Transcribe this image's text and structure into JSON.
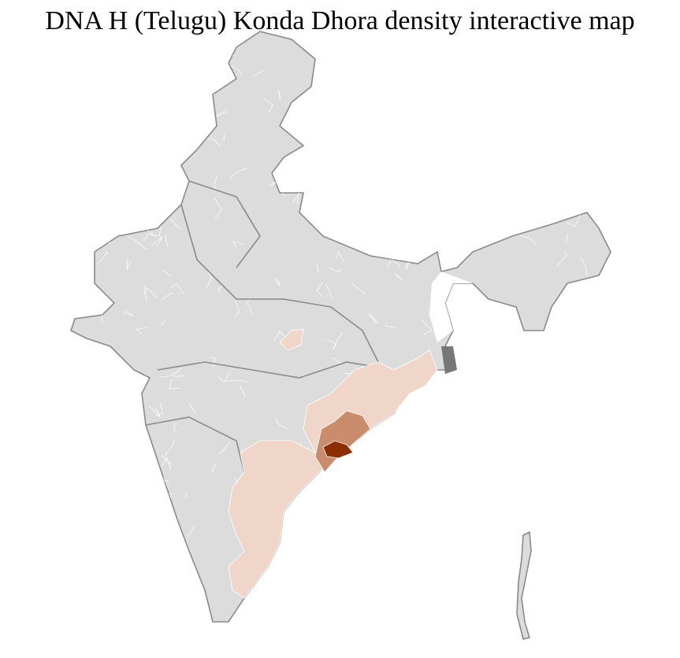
{
  "title": "DNA H (Telugu) Konda Dhora density interactive map",
  "colors": {
    "no_data": "#dcdcdc",
    "state_border": "#8a8a8a",
    "district_border": "#ffffff",
    "density_low": "#efd6c8",
    "density_medium": "#c98c6c",
    "density_high": "#8c2e00"
  },
  "regions": [
    {
      "id": "odisha-andhra-coast",
      "density": "low"
    },
    {
      "id": "telangana-south",
      "density": "low"
    },
    {
      "id": "central-india-patch",
      "density": "low"
    },
    {
      "id": "north-andhra-districts",
      "density": "medium"
    },
    {
      "id": "visakhapatnam-core",
      "density": "high"
    }
  ]
}
